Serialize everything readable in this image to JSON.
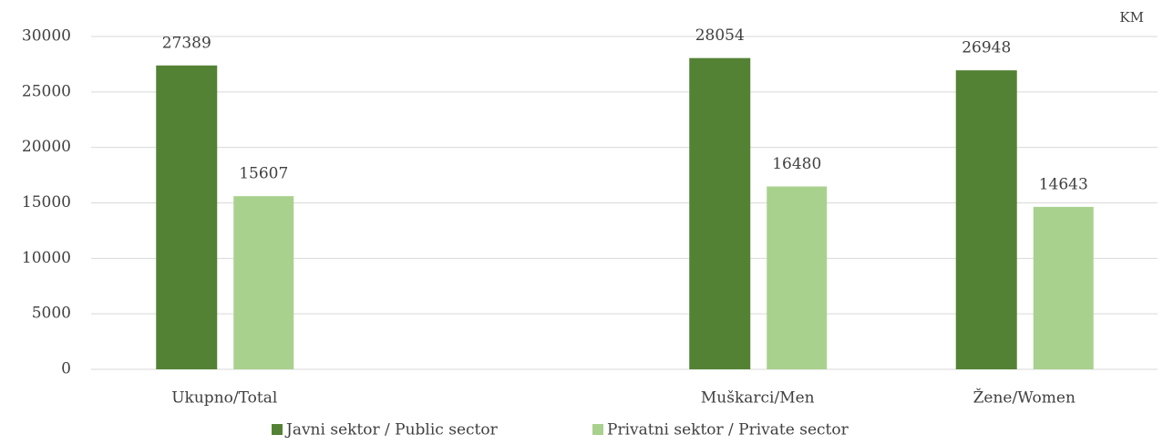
{
  "chart_data": {
    "type": "bar",
    "unit_label": "KM",
    "categories": [
      "Ukupno/Total",
      null,
      "Muškarci/Men",
      "Žene/Women"
    ],
    "series": [
      {
        "name": "Javni sektor / Public sector",
        "color": "#548235",
        "values": [
          27389,
          null,
          28054,
          26948
        ]
      },
      {
        "name": "Privatni sektor / Private sector",
        "color": "#a9d18e",
        "values": [
          15607,
          null,
          16480,
          14643
        ]
      }
    ],
    "ylim": [
      0,
      30000
    ],
    "yticks": [
      0,
      5000,
      10000,
      15000,
      20000,
      25000,
      30000
    ],
    "grid": true,
    "legend": "bottom"
  }
}
